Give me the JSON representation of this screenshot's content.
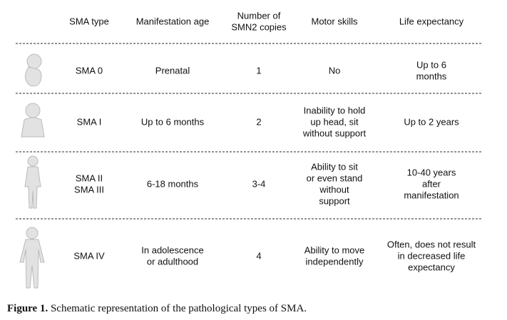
{
  "table": {
    "header": [
      [
        "SMA type"
      ],
      [
        "Manifestation age"
      ],
      [
        "Number of",
        "SMN2 copies"
      ],
      [
        "Motor skills"
      ],
      [
        "Life expectancy"
      ]
    ],
    "rows": [
      [
        [
          "SMA 0"
        ],
        [
          "Prenatal"
        ],
        [
          "1"
        ],
        [
          "No"
        ],
        [
          "Up to 6",
          "months"
        ]
      ],
      [
        [
          "SMA I"
        ],
        [
          "Up to 6 months"
        ],
        [
          "2"
        ],
        [
          "Inability to hold",
          "up head, sit",
          "without support"
        ],
        [
          "Up to 2 years"
        ]
      ],
      [
        [
          "SMA II",
          "SMA III"
        ],
        [
          "6-18 months"
        ],
        [
          "3-4"
        ],
        [
          "Ability to sit",
          "or even stand",
          "without",
          "support"
        ],
        [
          "10-40 years",
          "after",
          "manifestation"
        ]
      ],
      [
        [
          "SMA IV"
        ],
        [
          "In adolescence",
          "or adulthood"
        ],
        [
          "4"
        ],
        [
          "Ability to move",
          "independently"
        ],
        [
          "Often, does not result",
          "in decreased life",
          "expectancy"
        ]
      ]
    ]
  },
  "caption": {
    "label": "Figure 1.",
    "text": "Schematic representation of the pathological types of SMA."
  }
}
